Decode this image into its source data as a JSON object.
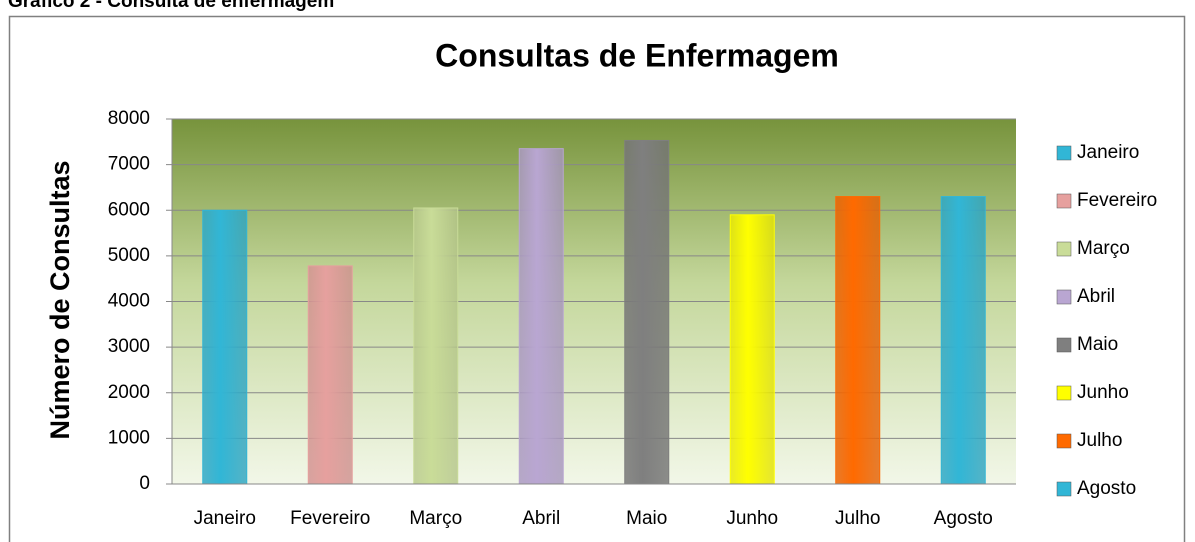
{
  "caption": "Gráfico 2 - Consulta de enfermagem",
  "chart_data": {
    "type": "bar",
    "title": "Consultas de Enfermagem",
    "y_label": "Número de Consultas",
    "categories": [
      "Janeiro",
      "Fevereiro",
      "Março",
      "Abril",
      "Maio",
      "Junho",
      "Julho",
      "Agosto"
    ],
    "values": [
      6000,
      4780,
      6050,
      7350,
      7530,
      5900,
      6300,
      6300
    ],
    "colors": [
      "#31b6d6",
      "#e6a09e",
      "#c9dc98",
      "#b9a6d2",
      "#7f7f7f",
      "#ffff00",
      "#ff6a00",
      "#31b6d6"
    ],
    "ylim": [
      0,
      8000
    ],
    "yticks": [
      0,
      1000,
      2000,
      3000,
      4000,
      5000,
      6000,
      7000,
      8000
    ],
    "grid": true,
    "legend": "right"
  }
}
